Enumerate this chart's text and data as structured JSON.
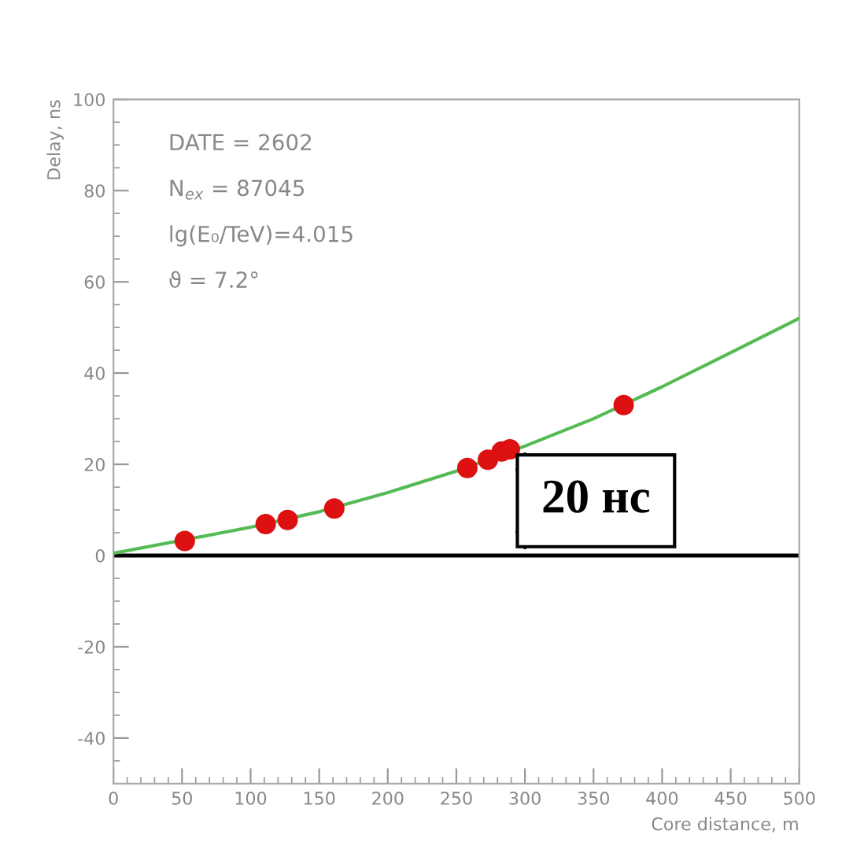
{
  "chart_data": {
    "type": "scatter",
    "xlabel": "Core distance, m",
    "ylabel": "Delay, ns",
    "xlim": [
      0,
      500
    ],
    "ylim": [
      -50,
      100
    ],
    "xticks": [
      0,
      50,
      100,
      150,
      200,
      250,
      300,
      350,
      400,
      450,
      500
    ],
    "yticks": [
      -40,
      -20,
      0,
      20,
      40,
      60,
      80,
      100
    ],
    "grid": false,
    "marker": "circle",
    "series": [
      {
        "color": "#dd1111",
        "x": [
          52,
          111,
          127,
          161,
          258,
          273,
          283,
          289,
          372
        ],
        "values": [
          3.2,
          6.9,
          7.8,
          10.3,
          19.2,
          21.0,
          22.8,
          23.3,
          33.0
        ]
      },
      {
        "type": "line",
        "color": "#55bb55",
        "marker": "none",
        "line_style": "solid",
        "x": [
          0,
          100,
          150,
          200,
          250,
          300,
          350,
          400,
          450,
          500
        ],
        "values": [
          0.5,
          6.2,
          9.6,
          13.8,
          18.5,
          24,
          30,
          37,
          44.5,
          52
        ]
      }
    ],
    "ref_lines": [
      {
        "axis": "y",
        "value": 0,
        "color": "#000000",
        "line_style": "solid"
      }
    ],
    "annotations": [
      "DATE = 2602",
      "N$_{ex}$ = 87045",
      "lg(E₀/TeV)=4.015",
      "ϑ = 7.2°",
      {
        "text": "20 нс",
        "x": 300,
        "y": 24
      }
    ]
  }
}
